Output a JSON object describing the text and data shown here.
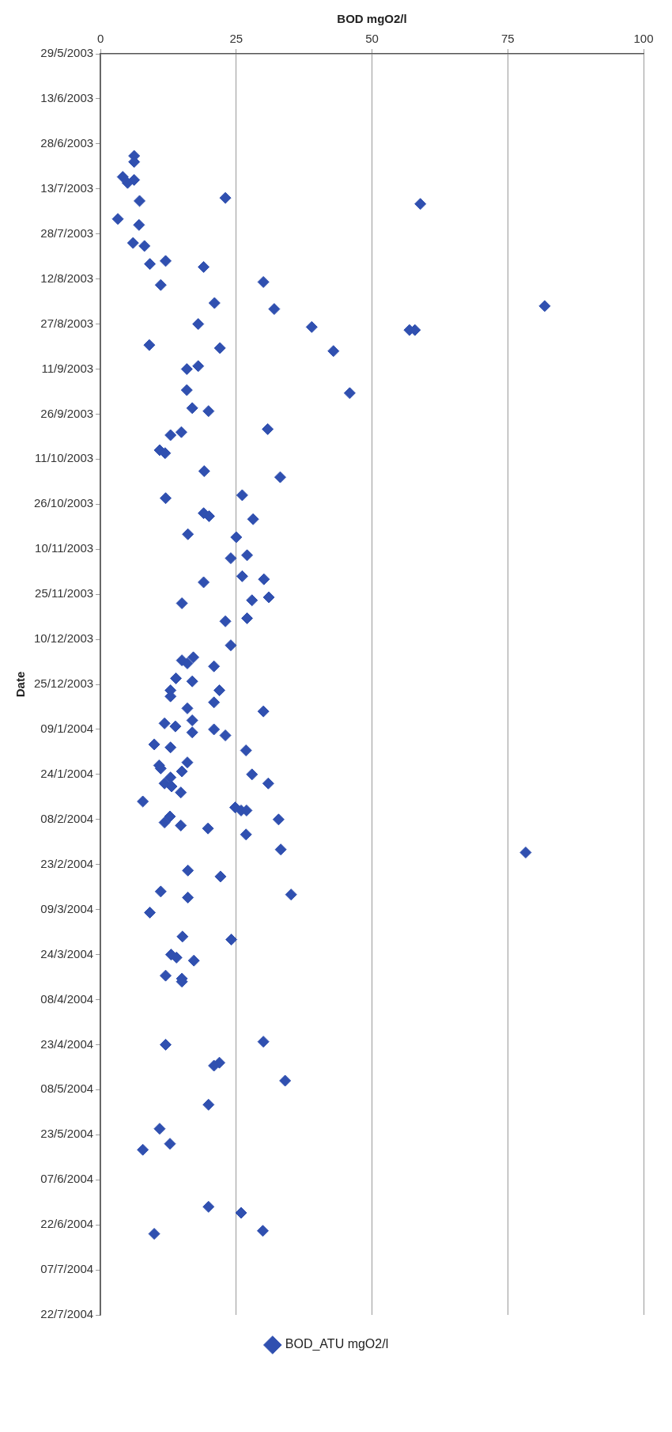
{
  "chart_data": {
    "type": "scatter",
    "orientation": "horizontal",
    "xlabel": "BOD mgO2/l",
    "ylabel": "Date",
    "marker": "diamond",
    "grid": "x",
    "legend": "bottom",
    "x": [
      "2003-07-02",
      "2003-07-04",
      "2003-07-09",
      "2003-07-10",
      "2003-07-11",
      "2003-07-16",
      "2003-07-17",
      "2003-07-18",
      "2003-07-23",
      "2003-07-25",
      "2003-07-31",
      "2003-08-01",
      "2003-08-06",
      "2003-08-07",
      "2003-08-08",
      "2003-08-13",
      "2003-08-14",
      "2003-08-20",
      "2003-08-21",
      "2003-08-22",
      "2003-08-27",
      "2003-08-28",
      "2003-08-29",
      "2003-08-29",
      "2003-09-03",
      "2003-09-04",
      "2003-09-05",
      "2003-09-10",
      "2003-09-11",
      "2003-09-18",
      "2003-09-19",
      "2003-09-24",
      "2003-09-25",
      "2003-10-01",
      "2003-10-02",
      "2003-10-03",
      "2003-10-08",
      "2003-10-09",
      "2003-10-15",
      "2003-10-17",
      "2003-10-23",
      "2003-10-24",
      "2003-10-29",
      "2003-10-30",
      "2003-10-31",
      "2003-11-05",
      "2003-11-06",
      "2003-11-12",
      "2003-11-13",
      "2003-11-19",
      "2003-11-20",
      "2003-11-21",
      "2003-11-26",
      "2003-11-27",
      "2003-11-28",
      "2003-12-03",
      "2003-12-04",
      "2003-12-12",
      "2003-12-16",
      "2003-12-17",
      "2003-12-18",
      "2003-12-19",
      "2003-12-23",
      "2003-12-24",
      "2003-12-27",
      "2003-12-27",
      "2003-12-29",
      "2003-12-31",
      "2004-01-02",
      "2004-01-03",
      "2004-01-06",
      "2004-01-07",
      "2004-01-08",
      "2004-01-09",
      "2004-01-10",
      "2004-01-11",
      "2004-01-14",
      "2004-01-15",
      "2004-01-16",
      "2004-01-20",
      "2004-01-21",
      "2004-01-22",
      "2004-01-23",
      "2004-01-24",
      "2004-01-25",
      "2004-01-27",
      "2004-01-27",
      "2004-01-28",
      "2004-01-30",
      "2004-02-02",
      "2004-02-04",
      "2004-02-05",
      "2004-02-05",
      "2004-02-07",
      "2004-02-08",
      "2004-02-09",
      "2004-02-10",
      "2004-02-11",
      "2004-02-13",
      "2004-02-18",
      "2004-02-19",
      "2004-02-25",
      "2004-02-27",
      "2004-03-03",
      "2004-03-04",
      "2004-03-05",
      "2004-03-10",
      "2004-03-18",
      "2004-03-19",
      "2004-03-24",
      "2004-03-25",
      "2004-03-26",
      "2004-03-31",
      "2004-04-01",
      "2004-04-02",
      "2004-04-22",
      "2004-04-23",
      "2004-04-29",
      "2004-04-30",
      "2004-05-05",
      "2004-05-13",
      "2004-05-21",
      "2004-05-26",
      "2004-05-28",
      "2004-06-16",
      "2004-06-18",
      "2004-06-24",
      "2004-06-25"
    ],
    "series": [
      {
        "name": "BOD_ATU mgO2/l",
        "color": "#3050b0",
        "values": [
          6.2,
          6.2,
          4.1,
          6.2,
          5.0,
          23,
          7.2,
          58.9,
          3.2,
          7.1,
          6.0,
          8.1,
          12.0,
          9.1,
          19.0,
          30.0,
          11.1,
          21.0,
          81.8,
          32.0,
          18.0,
          38.9,
          56.9,
          57.9,
          9.0,
          22.0,
          42.9,
          18.0,
          15.9,
          15.9,
          45.9,
          16.9,
          19.9,
          30.8,
          14.9,
          12.9,
          10.9,
          11.9,
          19.1,
          33.1,
          26.1,
          12.0,
          19.0,
          20.0,
          28.1,
          16.1,
          25.0,
          27.0,
          24.0,
          26.1,
          30.1,
          19.0,
          31.0,
          27.9,
          15.0,
          27.0,
          23.0,
          24.0,
          17.1,
          15.0,
          16.0,
          20.9,
          13.9,
          16.9,
          12.9,
          21.9,
          12.9,
          20.9,
          16.0,
          30.0,
          16.9,
          11.8,
          13.8,
          20.9,
          16.9,
          23.0,
          9.9,
          12.9,
          26.8,
          16.0,
          10.8,
          11.1,
          15.0,
          27.9,
          12.9,
          11.8,
          30.9,
          13.1,
          14.8,
          7.8,
          24.8,
          25.9,
          26.9,
          12.8,
          32.8,
          11.8,
          14.8,
          19.8,
          26.8,
          33.2,
          78.3,
          16.1,
          22.1,
          11.1,
          35.1,
          16.1,
          9.1,
          15.1,
          24.1,
          13.0,
          14.0,
          17.2,
          12.0,
          15.0,
          15.0,
          30.0,
          12.0,
          21.9,
          20.9,
          34.0,
          19.9,
          10.9,
          12.8,
          7.8,
          19.9,
          25.9,
          29.9,
          9.9
        ]
      }
    ],
    "xlim": [
      0,
      100
    ],
    "xticks": [
      0,
      25,
      50,
      75,
      100
    ],
    "ylim": [
      "2004-07-22",
      "2003-05-29"
    ],
    "yticks": [
      {
        "value": "2003-05-29",
        "label": "29/5/2003"
      },
      {
        "value": "2003-06-13",
        "label": "13/6/2003"
      },
      {
        "value": "2003-06-28",
        "label": "28/6/2003"
      },
      {
        "value": "2003-07-13",
        "label": "13/7/2003"
      },
      {
        "value": "2003-07-28",
        "label": "28/7/2003"
      },
      {
        "value": "2003-08-12",
        "label": "12/8/2003"
      },
      {
        "value": "2003-08-27",
        "label": "27/8/2003"
      },
      {
        "value": "2003-09-11",
        "label": "11/9/2003"
      },
      {
        "value": "2003-09-26",
        "label": "26/9/2003"
      },
      {
        "value": "2003-10-11",
        "label": "11/10/2003"
      },
      {
        "value": "2003-10-26",
        "label": "26/10/2003"
      },
      {
        "value": "2003-11-10",
        "label": "10/11/2003"
      },
      {
        "value": "2003-11-25",
        "label": "25/11/2003"
      },
      {
        "value": "2003-12-10",
        "label": "10/12/2003"
      },
      {
        "value": "2003-12-25",
        "label": "25/12/2003"
      },
      {
        "value": "2004-01-09",
        "label": "09/1/2004"
      },
      {
        "value": "2004-01-24",
        "label": "24/1/2004"
      },
      {
        "value": "2004-02-08",
        "label": "08/2/2004"
      },
      {
        "value": "2004-02-23",
        "label": "23/2/2004"
      },
      {
        "value": "2004-03-09",
        "label": "09/3/2004"
      },
      {
        "value": "2004-03-24",
        "label": "24/3/2004"
      },
      {
        "value": "2004-04-08",
        "label": "08/4/2004"
      },
      {
        "value": "2004-04-23",
        "label": "23/4/2004"
      },
      {
        "value": "2004-05-08",
        "label": "08/5/2004"
      },
      {
        "value": "2004-05-23",
        "label": "23/5/2004"
      },
      {
        "value": "2004-06-07",
        "label": "07/6/2004"
      },
      {
        "value": "2004-06-22",
        "label": "22/6/2004"
      },
      {
        "value": "2004-07-07",
        "label": "07/7/2004"
      },
      {
        "value": "2004-07-22",
        "label": "22/7/2004"
      }
    ]
  }
}
